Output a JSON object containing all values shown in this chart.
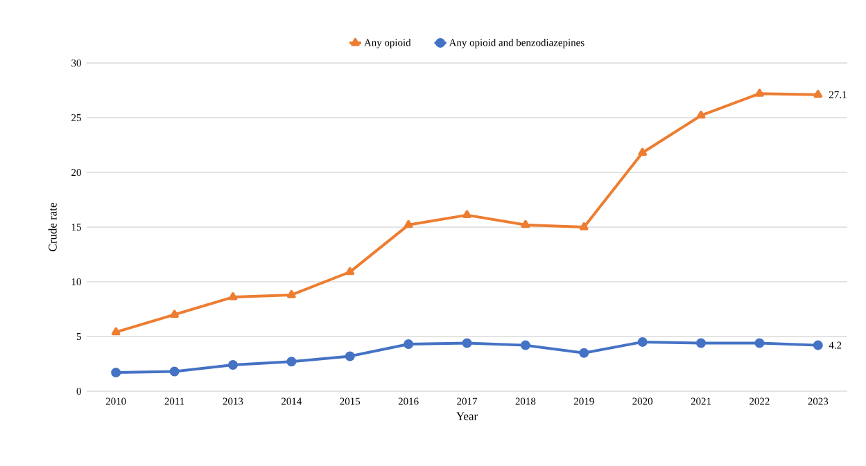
{
  "chart_data": {
    "type": "line",
    "xlabel": "Year",
    "ylabel": "Crude rate",
    "categories": [
      "2010",
      "2011",
      "2013",
      "2014",
      "2015",
      "2016",
      "2017",
      "2018",
      "2019",
      "2020",
      "2021",
      "2022",
      "2023"
    ],
    "series": [
      {
        "name": "Any opioid",
        "color": "#ed7d31",
        "marker": "triangle",
        "values": [
          5.4,
          7.0,
          8.6,
          8.8,
          10.9,
          15.2,
          16.1,
          15.2,
          15.0,
          21.8,
          25.2,
          27.2,
          27.1
        ],
        "value_labels": [
          null,
          null,
          null,
          null,
          null,
          null,
          null,
          null,
          null,
          null,
          null,
          null,
          "27.1"
        ]
      },
      {
        "name": "Any opioid and benzodiazepines",
        "color": "#4472c4",
        "marker": "circle",
        "values": [
          1.7,
          1.8,
          2.4,
          2.7,
          3.2,
          4.3,
          4.4,
          4.2,
          3.5,
          4.5,
          4.4,
          4.4,
          4.2
        ],
        "value_labels": [
          null,
          null,
          null,
          null,
          null,
          null,
          null,
          null,
          null,
          null,
          null,
          null,
          "4.2"
        ]
      }
    ],
    "ylim": [
      0,
      30
    ],
    "yticks": [
      0,
      5,
      10,
      15,
      20,
      25,
      30
    ],
    "grid": "y",
    "legend": "top",
    "line_style": "solid"
  }
}
